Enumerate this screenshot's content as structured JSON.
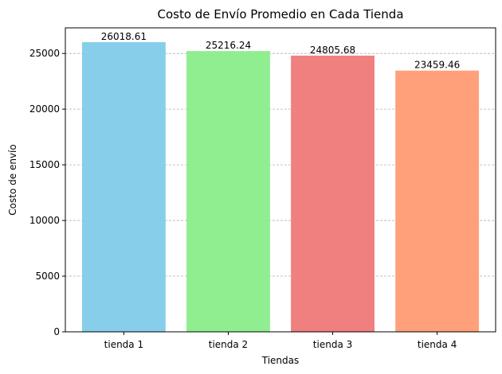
{
  "chart_data": {
    "type": "bar",
    "title": "Costo de Envío Promedio en Cada Tienda",
    "xlabel": "Tiendas",
    "ylabel": "Costo de envío",
    "categories": [
      "tienda 1",
      "tienda 2",
      "tienda 3",
      "tienda 4"
    ],
    "values": [
      26018.61,
      25216.24,
      24805.68,
      23459.46
    ],
    "data_labels": [
      "26018.61",
      "25216.24",
      "24805.68",
      "23459.46"
    ],
    "colors": [
      "#87ceeb",
      "#90ee90",
      "#f08080",
      "#ffa07a"
    ],
    "ylim": [
      0,
      27300
    ],
    "yticks": [
      0,
      5000,
      10000,
      15000,
      20000,
      25000
    ],
    "grid": "horizontal dashed",
    "legend": "none"
  }
}
